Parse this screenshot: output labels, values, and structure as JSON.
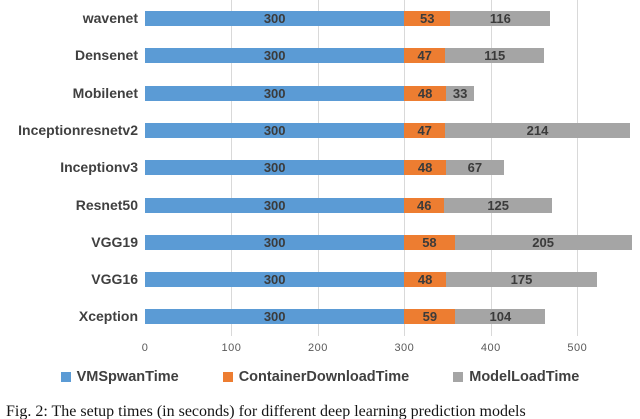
{
  "figure": {
    "caption": "Fig. 2: The setup times (in seconds) for different deep learning prediction models"
  },
  "chart_data": {
    "type": "bar",
    "orientation": "horizontal",
    "stacked": true,
    "title": "",
    "xlabel": "",
    "ylabel": "",
    "categories": [
      "wavenet",
      "Densenet",
      "Mobilenet",
      "Inceptionresnetv2",
      "Inceptionv3",
      "Resnet50",
      "VGG19",
      "VGG16",
      "Xception"
    ],
    "series": [
      {
        "name": "VMSpwanTime",
        "color": "#5b9bd5",
        "values": [
          300,
          300,
          300,
          300,
          300,
          300,
          300,
          300,
          300
        ]
      },
      {
        "name": "ContainerDownloadTime",
        "color": "#ed7d31",
        "values": [
          53,
          47,
          48,
          47,
          48,
          46,
          58,
          48,
          59
        ]
      },
      {
        "name": "ModelLoadTime",
        "color": "#a5a5a5",
        "values": [
          116,
          115,
          33,
          214,
          67,
          125,
          205,
          175,
          104
        ]
      }
    ],
    "xlim": [
      0,
      575
    ],
    "xticks": [
      0,
      100,
      200,
      300,
      400,
      500
    ],
    "grid": true,
    "data_labels": true,
    "legend_position": "bottom"
  },
  "colors": {
    "gridline": "#d9d9d9",
    "bar_label_text": "#3b3b3b",
    "category_label_text": "#404040",
    "axis_tick_text": "#595959",
    "caption_text": "#151515"
  }
}
